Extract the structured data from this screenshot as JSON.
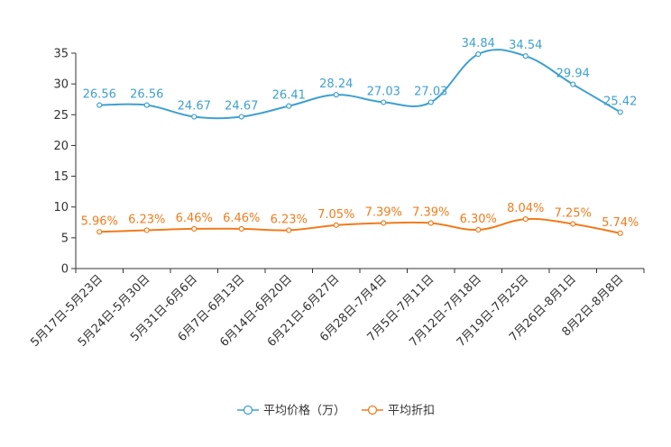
{
  "chart_data": {
    "type": "line",
    "categories": [
      "5月17日-5月23日",
      "5月24日-5月30日",
      "5月31日-6月6日",
      "6月7日-6月13日",
      "6月14日-6月20日",
      "6月21日-6月27日",
      "6月28日-7月4日",
      "7月5日-7月11日",
      "7月12日-7月18日",
      "7月19日-7月25日",
      "7月26日-8月1日",
      "8月2日-8月8日"
    ],
    "ylim": [
      0,
      35
    ],
    "yticks": [
      0,
      5,
      10,
      15,
      20,
      25,
      30,
      35
    ],
    "series": [
      {
        "name": "平均价格（万）",
        "color": "#3fa0d0",
        "values": [
          26.56,
          26.56,
          24.67,
          24.67,
          26.41,
          28.24,
          27.03,
          27.03,
          34.84,
          34.54,
          29.94,
          25.42
        ],
        "labels": [
          "26.56",
          "26.56",
          "24.67",
          "24.67",
          "26.41",
          "28.24",
          "27.03",
          "27.03",
          "34.84",
          "34.54",
          "29.94",
          "25.42"
        ]
      },
      {
        "name": "平均折扣",
        "color": "#f07c1c",
        "values": [
          5.96,
          6.23,
          6.46,
          6.46,
          6.23,
          7.05,
          7.39,
          7.39,
          6.3,
          8.04,
          7.25,
          5.74
        ],
        "labels": [
          "5.96%",
          "6.23%",
          "6.46%",
          "6.46%",
          "6.23%",
          "7.05%",
          "7.39%",
          "7.39%",
          "6.30%",
          "8.04%",
          "7.25%",
          "5.74%"
        ]
      }
    ],
    "legend": {
      "position": "bottom-center",
      "items": [
        "平均价格（万）",
        "平均折扣"
      ]
    }
  }
}
